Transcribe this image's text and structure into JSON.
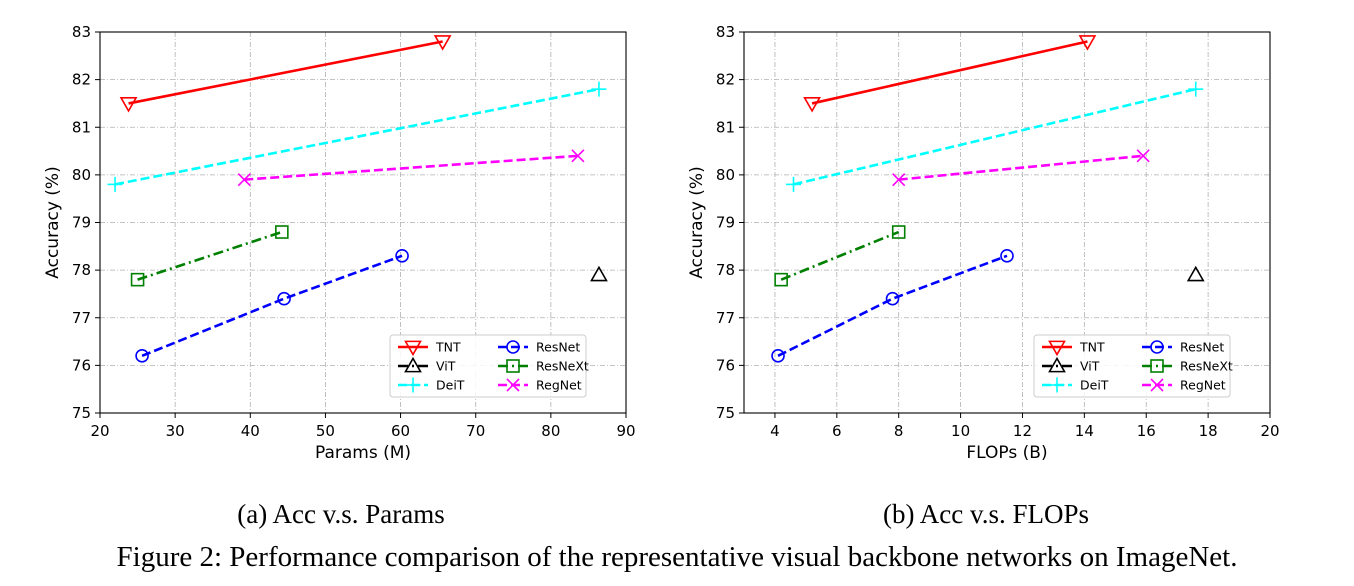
{
  "figure_caption": "Figure 2: Performance comparison of the representative visual backbone networks on ImageNet.",
  "chart_data": [
    {
      "type": "line",
      "subtitle": "(a) Acc v.s. Params",
      "xlabel": "Params (M)",
      "ylabel": "Accuracy (%)",
      "xlim": [
        20,
        90
      ],
      "ylim": [
        75,
        83
      ],
      "xticks": [
        20,
        30,
        40,
        50,
        60,
        70,
        80,
        90
      ],
      "yticks": [
        75,
        76,
        77,
        78,
        79,
        80,
        81,
        82,
        83
      ],
      "grid": true,
      "legend_position": "lower-right",
      "series": [
        {
          "name": "TNT",
          "color": "#ff0000",
          "dash": "solid",
          "marker": "triangle-down",
          "x": [
            23.8,
            65.6
          ],
          "y": [
            81.5,
            82.8
          ]
        },
        {
          "name": "ViT",
          "color": "#000000",
          "dash": "dashdot",
          "marker": "triangle-up",
          "x": [
            86.4
          ],
          "y": [
            77.9
          ]
        },
        {
          "name": "DeiT",
          "color": "#00ffff",
          "dash": "dashed",
          "marker": "plus",
          "x": [
            22.0,
            86.4
          ],
          "y": [
            79.8,
            81.8
          ]
        },
        {
          "name": "ResNet",
          "color": "#0000ff",
          "dash": "dashed",
          "marker": "circle",
          "x": [
            25.6,
            44.5,
            60.2
          ],
          "y": [
            76.2,
            77.4,
            78.3
          ]
        },
        {
          "name": "ResNeXt",
          "color": "#008000",
          "dash": "dashdot",
          "marker": "square",
          "x": [
            25.0,
            44.2
          ],
          "y": [
            77.8,
            78.8
          ]
        },
        {
          "name": "RegNet",
          "color": "#ff00ff",
          "dash": "dashed",
          "marker": "x",
          "x": [
            39.2,
            83.6
          ],
          "y": [
            79.9,
            80.4
          ]
        }
      ]
    },
    {
      "type": "line",
      "subtitle": "(b) Acc v.s. FLOPs",
      "xlabel": "FLOPs (B)",
      "ylabel": "Accuracy (%)",
      "xlim": [
        3,
        20
      ],
      "ylim": [
        75,
        83
      ],
      "xticks": [
        4,
        6,
        8,
        10,
        12,
        14,
        16,
        18,
        20
      ],
      "yticks": [
        75,
        76,
        77,
        78,
        79,
        80,
        81,
        82,
        83
      ],
      "grid": true,
      "legend_position": "lower-right",
      "series": [
        {
          "name": "TNT",
          "color": "#ff0000",
          "dash": "solid",
          "marker": "triangle-down",
          "x": [
            5.2,
            14.1
          ],
          "y": [
            81.5,
            82.8
          ]
        },
        {
          "name": "ViT",
          "color": "#000000",
          "dash": "dashdot",
          "marker": "triangle-up",
          "x": [
            17.6
          ],
          "y": [
            77.9
          ]
        },
        {
          "name": "DeiT",
          "color": "#00ffff",
          "dash": "dashed",
          "marker": "plus",
          "x": [
            4.6,
            17.6
          ],
          "y": [
            79.8,
            81.8
          ]
        },
        {
          "name": "ResNet",
          "color": "#0000ff",
          "dash": "dashed",
          "marker": "circle",
          "x": [
            4.1,
            7.8,
            11.5
          ],
          "y": [
            76.2,
            77.4,
            78.3
          ]
        },
        {
          "name": "ResNeXt",
          "color": "#008000",
          "dash": "dashdot",
          "marker": "square",
          "x": [
            4.2,
            8.0
          ],
          "y": [
            77.8,
            78.8
          ]
        },
        {
          "name": "RegNet",
          "color": "#ff00ff",
          "dash": "dashed",
          "marker": "x",
          "x": [
            8.0,
            15.9
          ],
          "y": [
            79.9,
            80.4
          ]
        }
      ]
    }
  ]
}
